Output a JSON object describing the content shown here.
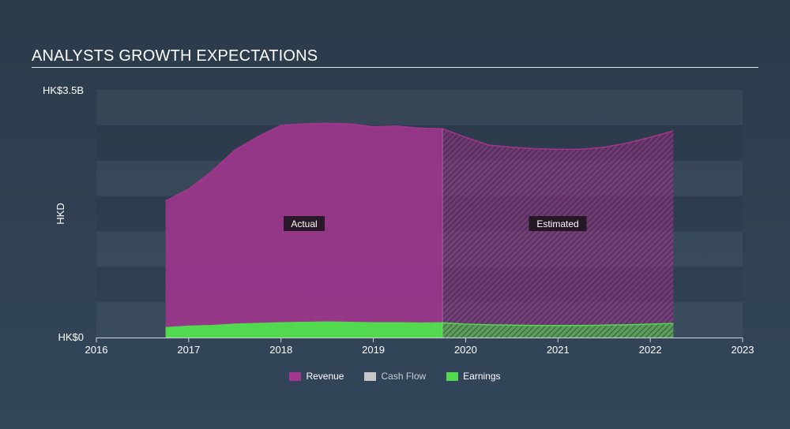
{
  "header": {
    "title": "ANALYSTS GROWTH EXPECTATIONS"
  },
  "chart_data": {
    "type": "area",
    "title": "ANALYSTS GROWTH EXPECTATIONS",
    "ylabel": "HKD",
    "yticks": [
      "HK$3.5B",
      "HK$0"
    ],
    "ylim": [
      0,
      3.5
    ],
    "xlim": [
      2016,
      2023
    ],
    "xticks": [
      "2016",
      "2017",
      "2018",
      "2019",
      "2020",
      "2021",
      "2022",
      "2023"
    ],
    "actual_end": 2019.75,
    "labels": {
      "actual": "Actual",
      "estimated": "Estimated"
    },
    "series": [
      {
        "name": "Revenue",
        "color": "#a3368e",
        "points": [
          [
            2016.75,
            1.93
          ],
          [
            2017.0,
            2.1
          ],
          [
            2017.25,
            2.35
          ],
          [
            2017.5,
            2.65
          ],
          [
            2017.75,
            2.84
          ],
          [
            2018.0,
            3.0
          ],
          [
            2018.25,
            3.02
          ],
          [
            2018.5,
            3.03
          ],
          [
            2018.75,
            3.02
          ],
          [
            2019.0,
            2.98
          ],
          [
            2019.25,
            2.99
          ],
          [
            2019.5,
            2.96
          ],
          [
            2019.75,
            2.95
          ],
          [
            2020.0,
            2.83
          ],
          [
            2020.25,
            2.72
          ],
          [
            2020.5,
            2.69
          ],
          [
            2020.75,
            2.67
          ],
          [
            2021.0,
            2.66
          ],
          [
            2021.25,
            2.66
          ],
          [
            2021.5,
            2.69
          ],
          [
            2021.75,
            2.75
          ],
          [
            2022.0,
            2.83
          ],
          [
            2022.25,
            2.92
          ]
        ]
      },
      {
        "name": "Cash Flow",
        "color": "#c7c7c7",
        "points": []
      },
      {
        "name": "Earnings",
        "color": "#53d94f",
        "points": [
          [
            2016.75,
            0.14
          ],
          [
            2017.0,
            0.16
          ],
          [
            2017.25,
            0.17
          ],
          [
            2017.5,
            0.19
          ],
          [
            2017.75,
            0.2
          ],
          [
            2018.0,
            0.21
          ],
          [
            2018.25,
            0.215
          ],
          [
            2018.5,
            0.22
          ],
          [
            2018.75,
            0.215
          ],
          [
            2019.0,
            0.21
          ],
          [
            2019.25,
            0.21
          ],
          [
            2019.5,
            0.205
          ],
          [
            2019.75,
            0.21
          ],
          [
            2020.0,
            0.19
          ],
          [
            2020.25,
            0.18
          ],
          [
            2020.5,
            0.175
          ],
          [
            2020.75,
            0.17
          ],
          [
            2021.0,
            0.17
          ],
          [
            2021.25,
            0.17
          ],
          [
            2021.5,
            0.175
          ],
          [
            2021.75,
            0.18
          ],
          [
            2022.0,
            0.19
          ],
          [
            2022.25,
            0.2
          ]
        ]
      }
    ]
  },
  "legend": [
    {
      "label": "Revenue",
      "color": "#a3368e"
    },
    {
      "label": "Cash Flow",
      "color": "#c7c7c7"
    },
    {
      "label": "Earnings",
      "color": "#53d94f"
    }
  ]
}
